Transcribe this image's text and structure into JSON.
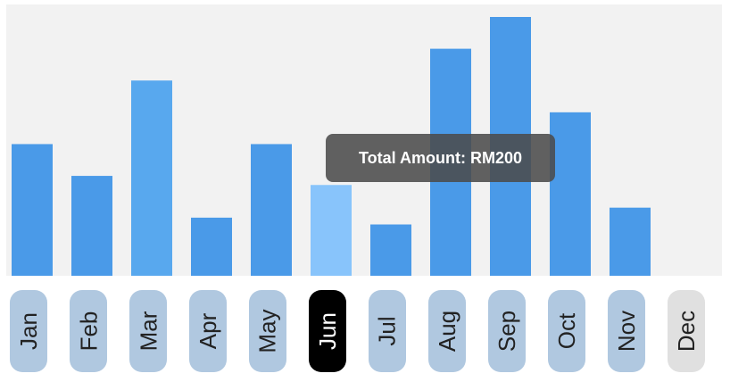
{
  "chart_data": {
    "type": "bar",
    "categories": [
      "Jan",
      "Feb",
      "Mar",
      "Apr",
      "May",
      "Jun",
      "Jul",
      "Aug",
      "Sep",
      "Oct",
      "Nov",
      "Dec"
    ],
    "values": [
      290,
      220,
      430,
      128,
      290,
      200,
      113,
      500,
      570,
      360,
      150,
      0
    ],
    "title": "",
    "xlabel": "",
    "ylabel": "",
    "ylim": [
      0,
      570
    ],
    "grid": false,
    "legend": "none",
    "colors": {
      "bar": "#4a9ae8",
      "bar_mar": "#58a8ee",
      "bar_selected": "#88c4fb",
      "plot_background": "#f2f2f2",
      "pill_default": "#b0c8e0",
      "pill_selected": "#000000",
      "pill_disabled": "#e0e0e0",
      "pill_text": "#222222",
      "pill_text_selected": "#ffffff"
    },
    "selected_index": 5,
    "disabled_indices": [
      11
    ]
  },
  "tooltip": {
    "text": "Total Amount: RM200"
  }
}
